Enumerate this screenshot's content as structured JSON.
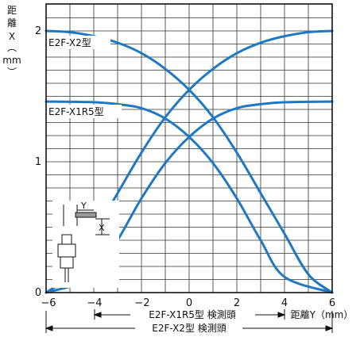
{
  "chart_data": {
    "type": "line",
    "ylabel_lines": [
      "距",
      "離",
      "X",
      "︵",
      "mm",
      "︶"
    ],
    "xlabel": "距離Y（mm）",
    "xlim": [
      -6,
      6
    ],
    "ylim": [
      0,
      2.1
    ],
    "x_ticks": [
      -6,
      -4,
      -2,
      0,
      2,
      4,
      6
    ],
    "x_tick_labels": [
      "−6",
      "−4",
      "−2",
      "0",
      "2",
      "4",
      "6"
    ],
    "y_ticks": [
      0,
      1,
      2
    ],
    "y_tick_labels": [
      "0",
      "1",
      "2"
    ],
    "grid": true,
    "colors": {
      "curve": "#1f78c1",
      "grid": "#333333",
      "frame": "#111111"
    },
    "series": [
      {
        "name": "E2F-X2型",
        "x": [
          -6,
          -5,
          -4,
          -3,
          -2,
          -1,
          0,
          1,
          2,
          3,
          4,
          5,
          6
        ],
        "y": [
          2.0,
          1.99,
          1.96,
          1.91,
          1.83,
          1.71,
          1.55,
          1.34,
          1.07,
          0.76,
          0.45,
          0.14,
          0.0
        ]
      },
      {
        "name": "E2F-X2型",
        "x": [
          -6,
          -5,
          -4,
          -3,
          -2,
          -1,
          0,
          1,
          2,
          3,
          4,
          5,
          6
        ],
        "y": [
          0.0,
          0.14,
          0.45,
          0.76,
          1.07,
          1.34,
          1.55,
          1.71,
          1.83,
          1.91,
          1.96,
          1.99,
          2.0
        ]
      },
      {
        "name": "E2F-X1R5型",
        "x": [
          -6,
          -4,
          -3,
          -2,
          -1,
          0,
          1,
          2,
          3,
          4,
          6
        ],
        "y": [
          1.46,
          1.455,
          1.44,
          1.41,
          1.33,
          1.19,
          0.99,
          0.72,
          0.4,
          0.12,
          0.0
        ]
      },
      {
        "name": "E2F-X1R5型",
        "x": [
          -6,
          -4,
          -3,
          -2,
          -1,
          0,
          1,
          2,
          3,
          4,
          6
        ],
        "y": [
          0.0,
          0.12,
          0.4,
          0.72,
          0.99,
          1.19,
          1.33,
          1.41,
          1.44,
          1.455,
          1.46
        ]
      }
    ],
    "annotations": {
      "x2_label": "E2F-X2型",
      "x1r5_label": "E2F-X1R5型",
      "range_x1r5": "E2F-X1R5型 検測頭",
      "range_x2": "E2F-X2型 検測頭",
      "inset_y": "Y",
      "inset_x": "X"
    }
  }
}
